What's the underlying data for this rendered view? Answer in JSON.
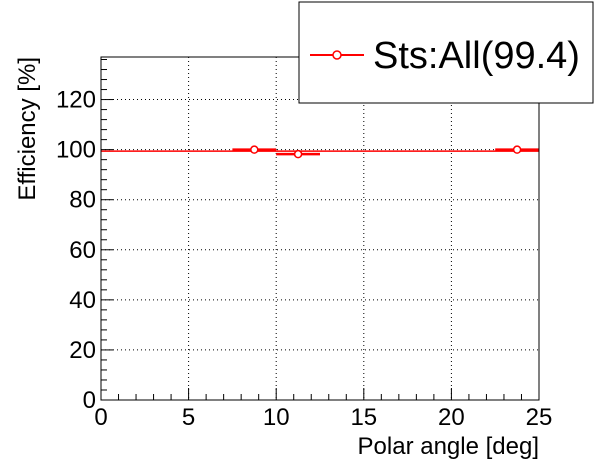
{
  "chart_data": {
    "type": "scatter",
    "xlabel": "Polar angle [deg]",
    "ylabel": "Efficiency [%]",
    "xlim": [
      0,
      25
    ],
    "ylim": [
      0,
      137
    ],
    "x_ticks": [
      0,
      5,
      10,
      15,
      20,
      25
    ],
    "y_ticks": [
      0,
      20,
      40,
      60,
      80,
      100,
      120
    ],
    "grid": true,
    "legend_position": "top-right",
    "series": [
      {
        "name": "Sts:All(99.4)",
        "color": "#ff0000",
        "marker": "open-circle",
        "points": [
          {
            "x": 8.75,
            "xerr": 1.25,
            "y": 100,
            "yerr": 0.5
          },
          {
            "x": 11.25,
            "xerr": 1.25,
            "y": 98.2,
            "yerr": 1.0
          },
          {
            "x": 23.75,
            "xerr": 1.25,
            "y": 100,
            "yerr": 0.5
          }
        ]
      }
    ],
    "reference_line": {
      "y": 99.4,
      "color": "#ff0000"
    }
  }
}
